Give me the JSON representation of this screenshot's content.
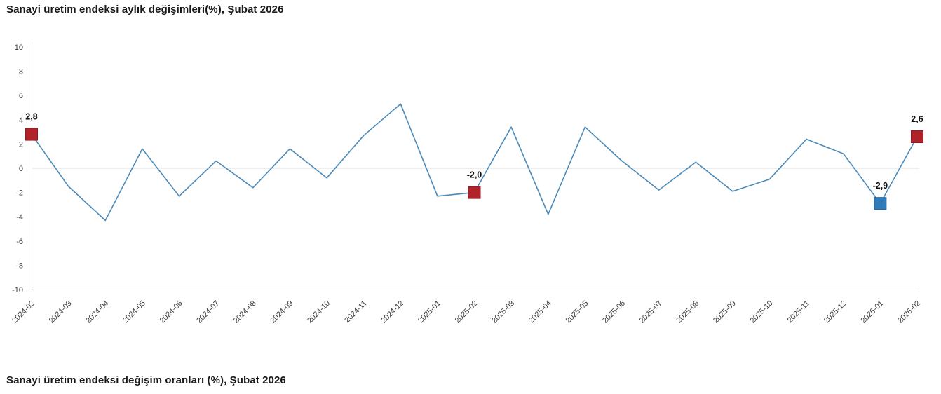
{
  "page": {
    "bottom_title": "Sanayi üretim endeksi değişim oranları (%), Şubat 2026"
  },
  "colors": {
    "line": "#4c8ab9",
    "marker_red": "#b1232a",
    "marker_red_stroke": "#8e1b21",
    "marker_blue": "#2f7ab8",
    "marker_blue_stroke": "#266299",
    "zero_line": "#dcdcdc",
    "axis": "#c9c9c9",
    "tick_text": "#3c3c3c",
    "title_text": "#191919",
    "label_text": "#0f0f0f"
  },
  "chart_data": {
    "type": "line",
    "title": "Sanayi üretim endeksi aylık değişimleri(%), Şubat 2026",
    "x": [
      "2024-02",
      "2024-03",
      "2024-04",
      "2024-05",
      "2024-06",
      "2024-07",
      "2024-08",
      "2024-09",
      "2024-10",
      "2024-11",
      "2024-12",
      "2025-01",
      "2025-02",
      "2025-03",
      "2025-04",
      "2025-05",
      "2025-06",
      "2025-07",
      "2025-08",
      "2025-09",
      "2025-10",
      "2025-11",
      "2025-12",
      "2026-01",
      "2026-02"
    ],
    "values": [
      2.8,
      -1.5,
      -4.3,
      1.6,
      -2.3,
      0.6,
      -1.6,
      1.6,
      -0.8,
      2.7,
      5.3,
      -2.3,
      -2.0,
      3.4,
      -3.8,
      3.4,
      0.6,
      -1.8,
      0.5,
      -1.9,
      -0.9,
      2.4,
      1.2,
      -2.9,
      2.6
    ],
    "ylim": [
      -10,
      10
    ],
    "yticks": [
      10,
      8,
      6,
      4,
      2,
      0,
      -2,
      -4,
      -6,
      -8,
      -10
    ],
    "grid": "zero-line-only",
    "legend": "none",
    "xlabel": "",
    "ylabel": "",
    "highlighted_points": [
      {
        "x": "2024-02",
        "value": 2.8,
        "label": "2,8",
        "color_key": "marker_red",
        "stroke_key": "marker_red_stroke"
      },
      {
        "x": "2025-02",
        "value": -2.0,
        "label": "-2,0",
        "color_key": "marker_red",
        "stroke_key": "marker_red_stroke"
      },
      {
        "x": "2026-01",
        "value": -2.9,
        "label": "-2,9",
        "color_key": "marker_blue",
        "stroke_key": "marker_blue_stroke"
      },
      {
        "x": "2026-02",
        "value": 2.6,
        "label": "2,6",
        "color_key": "marker_red",
        "stroke_key": "marker_red_stroke"
      }
    ]
  }
}
